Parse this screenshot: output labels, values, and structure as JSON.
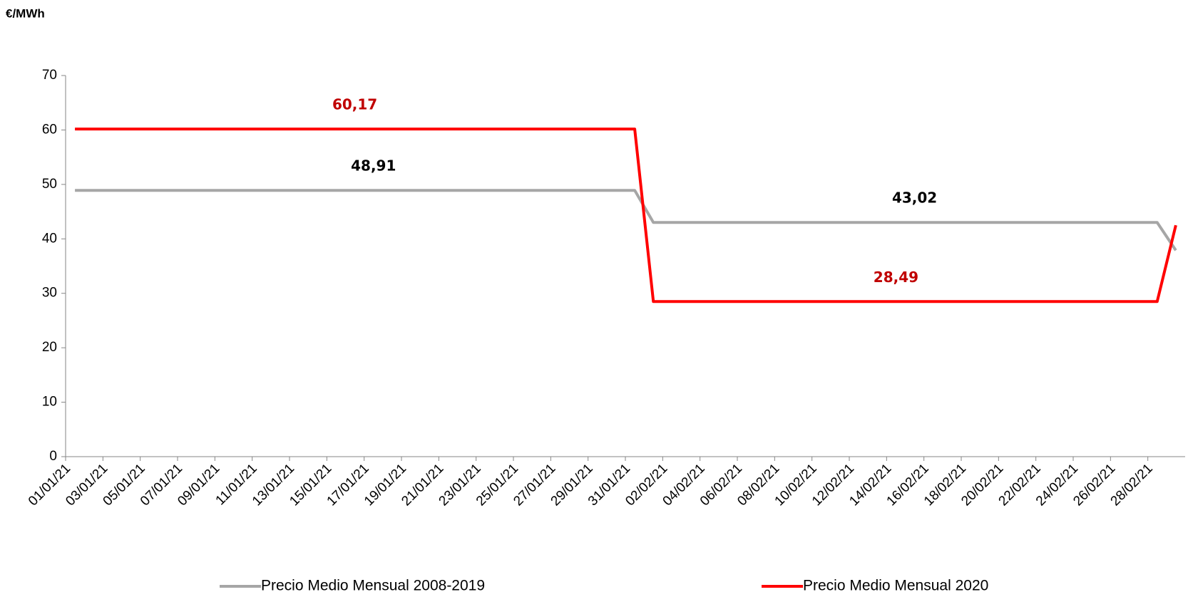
{
  "chart_data": {
    "type": "line",
    "title": "€/MWh",
    "categories": [
      "01/01/21",
      null,
      "03/01/21",
      null,
      "05/01/21",
      null,
      "07/01/21",
      null,
      "09/01/21",
      null,
      "11/01/21",
      null,
      "13/01/21",
      null,
      "15/01/21",
      null,
      "17/01/21",
      null,
      "19/01/21",
      null,
      "21/01/21",
      null,
      "23/01/21",
      null,
      "25/01/21",
      null,
      "27/01/21",
      null,
      "29/01/21",
      null,
      "31/01/21",
      null,
      "02/02/21",
      null,
      "04/02/21",
      null,
      "06/02/21",
      null,
      "08/02/21",
      null,
      "10/02/21",
      null,
      "12/02/21",
      null,
      "14/02/21",
      null,
      "16/02/21",
      null,
      "18/02/21",
      null,
      "20/02/21",
      null,
      "22/02/21",
      null,
      "24/02/21",
      null,
      "26/02/21",
      null,
      "28/02/21",
      null
    ],
    "series": [
      {
        "name": "Precio Medio Mensual 2008-2019",
        "color": "#a6a6a6",
        "label_color": "#000000",
        "values": [
          48.91,
          48.91,
          48.91,
          48.91,
          48.91,
          48.91,
          48.91,
          48.91,
          48.91,
          48.91,
          48.91,
          48.91,
          48.91,
          48.91,
          48.91,
          48.91,
          48.91,
          48.91,
          48.91,
          48.91,
          48.91,
          48.91,
          48.91,
          48.91,
          48.91,
          48.91,
          48.91,
          48.91,
          48.91,
          48.91,
          48.91,
          43.02,
          43.02,
          43.02,
          43.02,
          43.02,
          43.02,
          43.02,
          43.02,
          43.02,
          43.02,
          43.02,
          43.02,
          43.02,
          43.02,
          43.02,
          43.02,
          43.02,
          43.02,
          43.02,
          43.02,
          43.02,
          43.02,
          43.02,
          43.02,
          43.02,
          43.02,
          43.02,
          43.02,
          37.9
        ],
        "value_labels": [
          null,
          null,
          null,
          null,
          null,
          null,
          null,
          null,
          null,
          null,
          null,
          null,
          null,
          null,
          null,
          null,
          "48,91",
          null,
          null,
          null,
          null,
          null,
          null,
          null,
          null,
          null,
          null,
          null,
          null,
          null,
          null,
          null,
          null,
          null,
          null,
          null,
          null,
          null,
          null,
          null,
          null,
          null,
          null,
          null,
          null,
          "43,02",
          null,
          null,
          null,
          null,
          null,
          null,
          null,
          null,
          null,
          null,
          null,
          null,
          null,
          null
        ]
      },
      {
        "name": "Precio Medio Mensual 2020",
        "color": "#ff0000",
        "label_color": "#c00000",
        "values": [
          60.17,
          60.17,
          60.17,
          60.17,
          60.17,
          60.17,
          60.17,
          60.17,
          60.17,
          60.17,
          60.17,
          60.17,
          60.17,
          60.17,
          60.17,
          60.17,
          60.17,
          60.17,
          60.17,
          60.17,
          60.17,
          60.17,
          60.17,
          60.17,
          60.17,
          60.17,
          60.17,
          60.17,
          60.17,
          60.17,
          60.17,
          28.49,
          28.49,
          28.49,
          28.49,
          28.49,
          28.49,
          28.49,
          28.49,
          28.49,
          28.49,
          28.49,
          28.49,
          28.49,
          28.49,
          28.49,
          28.49,
          28.49,
          28.49,
          28.49,
          28.49,
          28.49,
          28.49,
          28.49,
          28.49,
          28.49,
          28.49,
          28.49,
          28.49,
          42.5
        ],
        "value_labels": [
          null,
          null,
          null,
          null,
          null,
          null,
          null,
          null,
          null,
          null,
          null,
          null,
          null,
          null,
          null,
          "60,17",
          null,
          null,
          null,
          null,
          null,
          null,
          null,
          null,
          null,
          null,
          null,
          null,
          null,
          null,
          null,
          null,
          null,
          null,
          null,
          null,
          null,
          null,
          null,
          null,
          null,
          null,
          null,
          null,
          "28,49",
          null,
          null,
          null,
          null,
          null,
          null,
          null,
          null,
          null,
          null,
          null,
          null,
          null,
          null,
          null
        ]
      }
    ],
    "ylim": [
      0,
      70
    ],
    "yticks": [
      0,
      10,
      20,
      30,
      40,
      50,
      60,
      70
    ],
    "grid": false,
    "legend": "bottom"
  }
}
